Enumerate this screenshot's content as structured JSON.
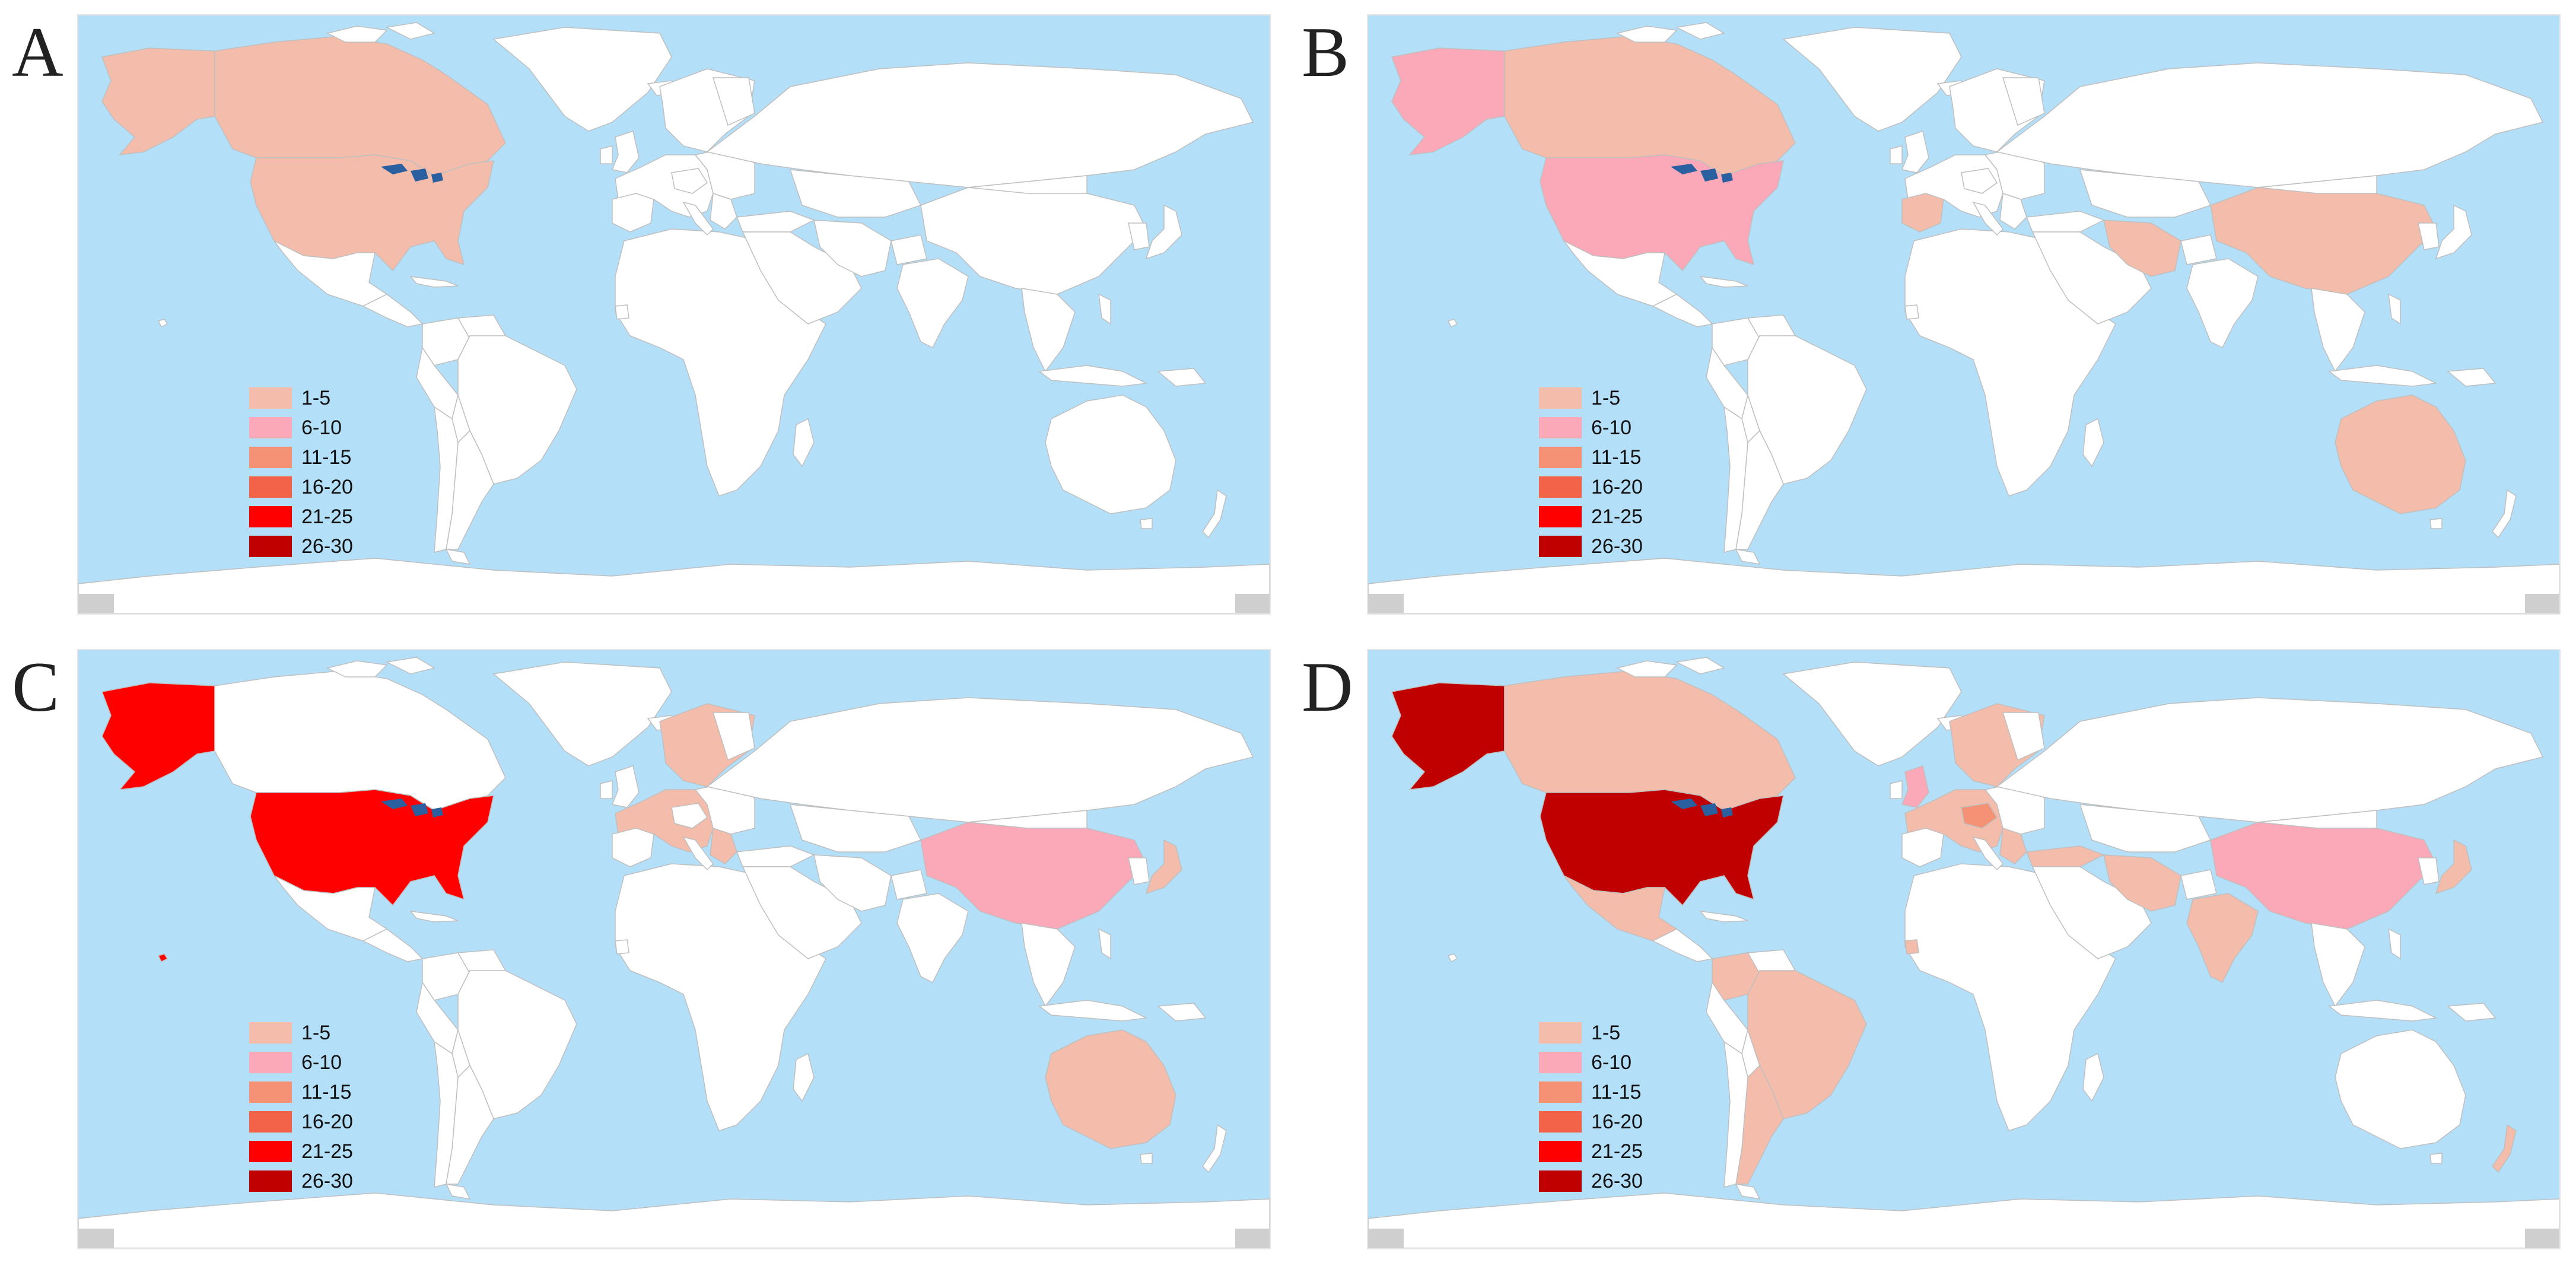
{
  "colors": {
    "ocean": "#b3dff9",
    "land": "#ffffff",
    "border": "#bfbfbf",
    "antarctica_edge": "#cfcfcf",
    "lakes": "#2a5fa0"
  },
  "legend": [
    {
      "label": "1-5",
      "color": "#f4bcaa"
    },
    {
      "label": "6-10",
      "color": "#fba8b8"
    },
    {
      "label": "11-15",
      "color": "#f59174"
    },
    {
      "label": "16-20",
      "color": "#f2634a"
    },
    {
      "label": "21-25",
      "color": "#ff0000"
    },
    {
      "label": "26-30",
      "color": "#c00000"
    }
  ],
  "panels": [
    {
      "letter": "A",
      "regions": {
        "alaska": "1-5",
        "canada": "1-5",
        "usa": "1-5"
      }
    },
    {
      "letter": "B",
      "regions": {
        "alaska": "6-10",
        "canada": "1-5",
        "usa": "6-10",
        "spain": "1-5",
        "iran": "1-5",
        "china": "1-5",
        "australia": "1-5"
      }
    },
    {
      "letter": "C",
      "regions": {
        "alaska": "21-25",
        "usa": "21-25",
        "hawaii": "21-25",
        "western_europe": "1-5",
        "scandinavia": "1-5",
        "balkans": "1-5",
        "china": "6-10",
        "japan": "1-5",
        "australia": "1-5"
      }
    },
    {
      "letter": "D",
      "regions": {
        "alaska": "26-30",
        "usa": "26-30",
        "canada": "1-5",
        "western_europe": "1-5",
        "scandinavia": "1-5",
        "uk": "6-10",
        "central_europe": "11-15",
        "balkans": "1-5",
        "turkey": "1-5",
        "iran": "1-5",
        "india": "1-5",
        "china": "6-10",
        "japan": "1-5",
        "mexico": "1-5",
        "colombia": "1-5",
        "brazil": "1-5",
        "argentina": "1-5",
        "senegal": "1-5",
        "new_zealand": "1-5"
      }
    }
  ]
}
